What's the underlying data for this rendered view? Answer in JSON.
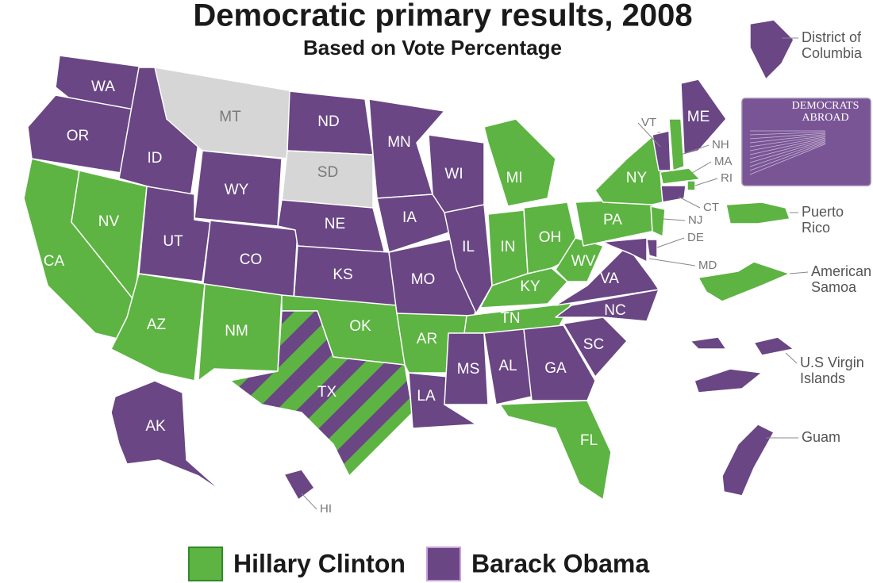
{
  "header": {
    "title": "Democratic primary results, 2008",
    "subtitle": "Based on Vote Percentage"
  },
  "legend": [
    {
      "name": "Hillary Clinton",
      "color": "#5db442"
    },
    {
      "name": "Barack Obama",
      "color": "#6a4684"
    }
  ],
  "states": [
    {
      "label": "WA",
      "color": "#6a4684"
    },
    {
      "label": "OR",
      "color": "#6a4684"
    },
    {
      "label": "CA",
      "color": "#5db442"
    },
    {
      "label": "NV",
      "color": "#5db442"
    },
    {
      "label": "ID",
      "color": "#6a4684"
    },
    {
      "label": "MT",
      "color": "#d6d6d6"
    },
    {
      "label": "WY",
      "color": "#6a4684"
    },
    {
      "label": "UT",
      "color": "#6a4684"
    },
    {
      "label": "CO",
      "color": "#6a4684"
    },
    {
      "label": "AZ",
      "color": "#5db442"
    },
    {
      "label": "NM",
      "color": "#5db442"
    },
    {
      "label": "ND",
      "color": "#6a4684"
    },
    {
      "label": "SD",
      "color": "#d6d6d6"
    },
    {
      "label": "NE",
      "color": "#6a4684"
    },
    {
      "label": "KS",
      "color": "#6a4684"
    },
    {
      "label": "OK",
      "color": "#5db442"
    },
    {
      "label": "TX",
      "colors": [
        "#5db442",
        "#6a4684"
      ]
    },
    {
      "label": "MN",
      "color": "#6a4684"
    },
    {
      "label": "IA",
      "color": "#6a4684"
    },
    {
      "label": "MO",
      "color": "#6a4684"
    },
    {
      "label": "AR",
      "color": "#5db442"
    },
    {
      "label": "LA",
      "color": "#6a4684"
    },
    {
      "label": "WI",
      "color": "#6a4684"
    },
    {
      "label": "IL",
      "color": "#6a4684"
    },
    {
      "label": "MI",
      "color": "#5db442"
    },
    {
      "label": "IN",
      "color": "#5db442"
    },
    {
      "label": "OH",
      "color": "#5db442"
    },
    {
      "label": "KY",
      "color": "#5db442"
    },
    {
      "label": "TN",
      "color": "#5db442"
    },
    {
      "label": "MS",
      "color": "#6a4684"
    },
    {
      "label": "AL",
      "color": "#6a4684"
    },
    {
      "label": "GA",
      "color": "#6a4684"
    },
    {
      "label": "FL",
      "color": "#5db442"
    },
    {
      "label": "SC",
      "color": "#6a4684"
    },
    {
      "label": "NC",
      "color": "#6a4684"
    },
    {
      "label": "VA",
      "color": "#6a4684"
    },
    {
      "label": "WV",
      "color": "#5db442"
    },
    {
      "label": "PA",
      "color": "#5db442"
    },
    {
      "label": "NY",
      "color": "#5db442"
    },
    {
      "label": "VT",
      "color": "#6a4684"
    },
    {
      "label": "NH",
      "color": "#5db442"
    },
    {
      "label": "ME",
      "color": "#6a4684"
    },
    {
      "label": "MA",
      "color": "#5db442"
    },
    {
      "label": "RI",
      "color": "#5db442"
    },
    {
      "label": "CT",
      "color": "#6a4684"
    },
    {
      "label": "NJ",
      "color": "#5db442"
    },
    {
      "label": "DE",
      "color": "#6a4684"
    },
    {
      "label": "MD",
      "color": "#6a4684"
    },
    {
      "label": "AK",
      "color": "#6a4684"
    },
    {
      "label": "HI",
      "color": "#6a4684"
    }
  ],
  "territories": [
    {
      "lines": [
        "District of",
        "Columbia"
      ],
      "color": "#6a4684"
    },
    {
      "lines": [
        "Puerto",
        "Rico"
      ],
      "color": "#5db442"
    },
    {
      "lines": [
        "American",
        "Samoa"
      ],
      "color": "#5db442"
    },
    {
      "lines": [
        "U.S Virgin",
        "Islands"
      ],
      "color": "#6a4684"
    },
    {
      "lines": [
        "Guam"
      ],
      "color": "#6a4684"
    }
  ],
  "abroad": {
    "lines": [
      "DEMOCRATS",
      "ABROAD"
    ],
    "color": "#7a5596"
  }
}
